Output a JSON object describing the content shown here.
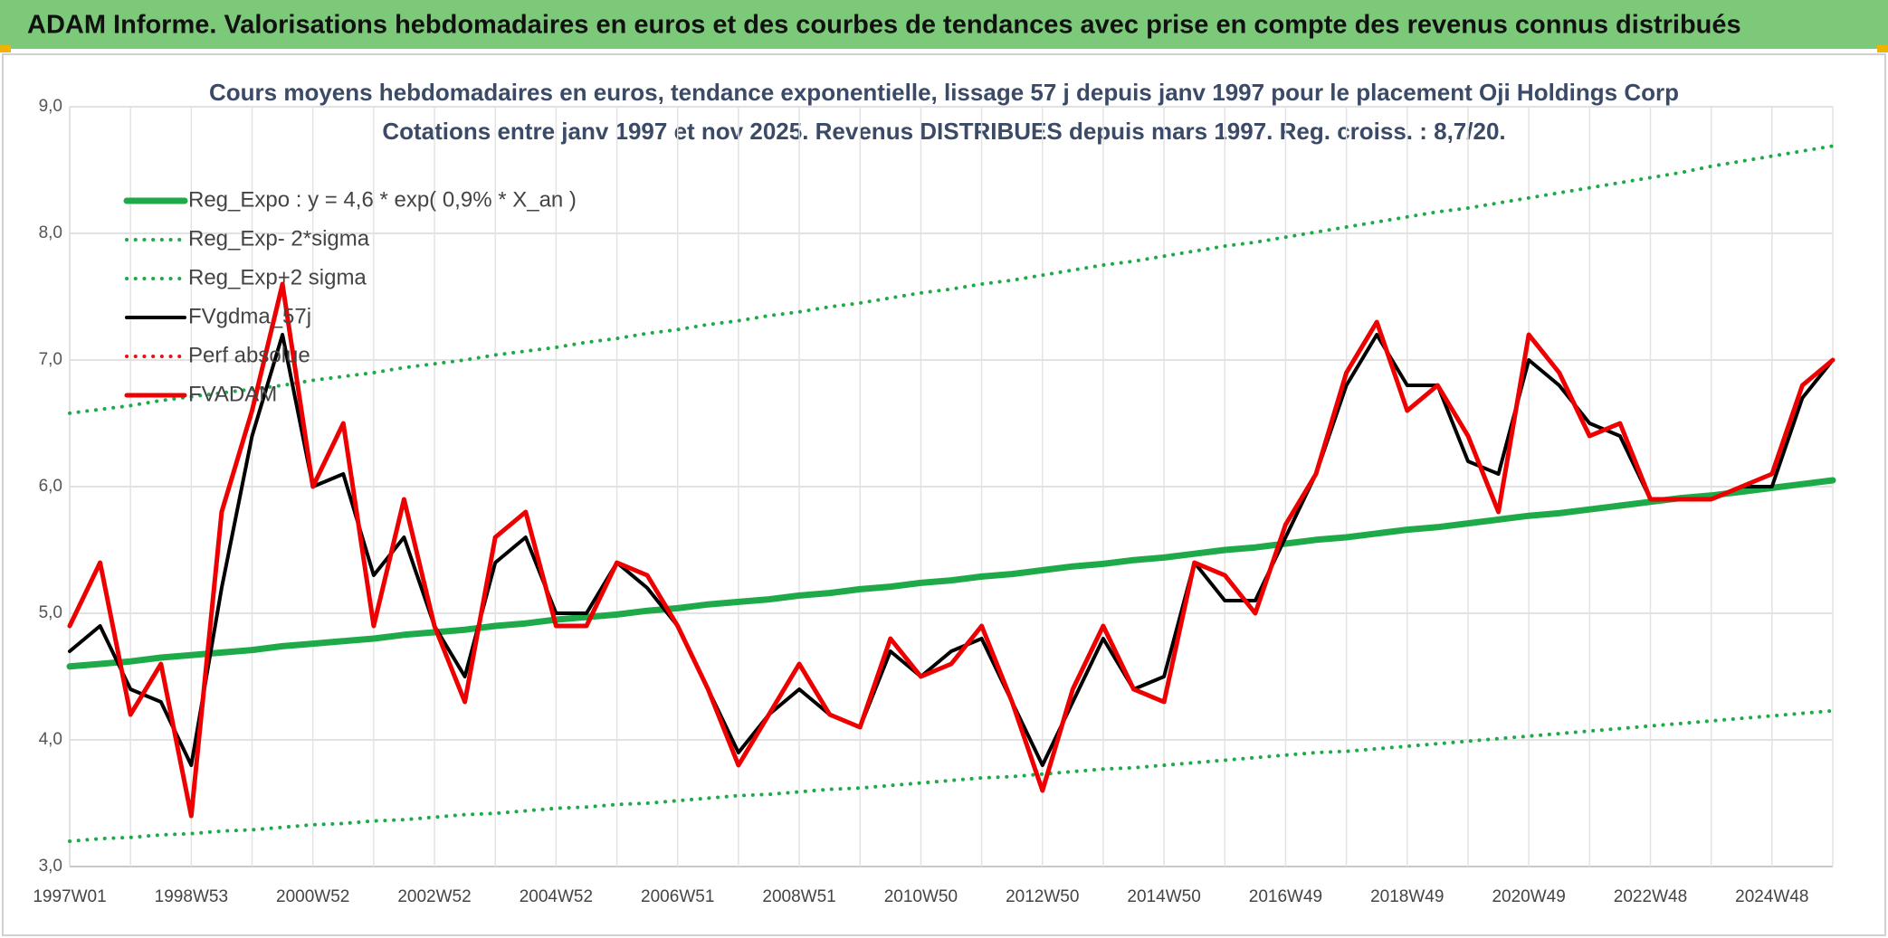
{
  "header_title": "ADAM Informe. Valorisations hebdomadaires en euros et des courbes de tendances avec prise en compte des revenus connus distribués",
  "chart_data": {
    "type": "line",
    "title": "Cours moyens hebdomadaires en euros, tendance exponentielle, lissage 57 j depuis janv 1997 pour le placement Oji Holdings Corp",
    "subtitle": "Cotations entre janv 1997 et nov 2025. Revenus DISTRIBUES depuis mars 1997. Reg. croiss. : 8,7/20.",
    "categories": [
      "1997W01",
      null,
      null,
      null,
      "1998W53",
      null,
      null,
      null,
      "2000W52",
      null,
      null,
      null,
      "2002W52",
      null,
      null,
      null,
      "2004W52",
      null,
      null,
      null,
      "2006W51",
      null,
      null,
      null,
      "2008W51",
      null,
      null,
      null,
      "2010W50",
      null,
      null,
      null,
      "2012W50",
      null,
      null,
      null,
      "2014W50",
      null,
      null,
      null,
      "2016W49",
      null,
      null,
      null,
      "2018W49",
      null,
      null,
      null,
      "2020W49",
      null,
      null,
      null,
      "2022W48",
      null,
      null,
      null,
      "2024W48",
      null,
      null
    ],
    "ylim": [
      3,
      9
    ],
    "yticks": [
      {
        "value": 3,
        "label": "3,0"
      },
      {
        "value": 4,
        "label": "4,0"
      },
      {
        "value": 5,
        "label": "5,0"
      },
      {
        "value": 6,
        "label": "6,0"
      },
      {
        "value": 7,
        "label": "7,0"
      },
      {
        "value": 8,
        "label": "8,0"
      },
      {
        "value": 9,
        "label": "9,0"
      }
    ],
    "grid": true,
    "legend": "upper left",
    "series": [
      {
        "name": "Reg_Expo : y = 4,6 * exp( 0,9% *  X_an )",
        "color": "#1faa4a",
        "style": "solid",
        "width": 7,
        "values": [
          4.58,
          4.6,
          4.62,
          4.65,
          4.67,
          4.69,
          4.71,
          4.74,
          4.76,
          4.78,
          4.8,
          4.83,
          4.85,
          4.87,
          4.9,
          4.92,
          4.95,
          4.97,
          4.99,
          5.02,
          5.04,
          5.07,
          5.09,
          5.11,
          5.14,
          5.16,
          5.19,
          5.21,
          5.24,
          5.26,
          5.29,
          5.31,
          5.34,
          5.37,
          5.39,
          5.42,
          5.44,
          5.47,
          5.5,
          5.52,
          5.55,
          5.58,
          5.6,
          5.63,
          5.66,
          5.68,
          5.71,
          5.74,
          5.77,
          5.79,
          5.82,
          5.85,
          5.88,
          5.91,
          5.93,
          5.96,
          5.99,
          6.02,
          6.05
        ]
      },
      {
        "name": "Reg_Exp- 2*sigma",
        "color": "#1faa4a",
        "style": "dotted",
        "width": 4,
        "values": [
          3.2,
          3.22,
          3.23,
          3.25,
          3.26,
          3.28,
          3.29,
          3.31,
          3.33,
          3.34,
          3.36,
          3.37,
          3.39,
          3.41,
          3.42,
          3.44,
          3.46,
          3.47,
          3.49,
          3.5,
          3.52,
          3.54,
          3.56,
          3.57,
          3.59,
          3.61,
          3.62,
          3.64,
          3.66,
          3.68,
          3.7,
          3.71,
          3.73,
          3.75,
          3.77,
          3.78,
          3.8,
          3.82,
          3.84,
          3.86,
          3.88,
          3.9,
          3.91,
          3.93,
          3.95,
          3.97,
          3.99,
          4.01,
          4.03,
          4.05,
          4.07,
          4.09,
          4.11,
          4.13,
          4.15,
          4.17,
          4.19,
          4.21,
          4.23
        ]
      },
      {
        "name": "Reg_Exp+2 sigma",
        "color": "#1faa4a",
        "style": "dotted",
        "width": 4,
        "values": [
          6.58,
          6.61,
          6.64,
          6.68,
          6.71,
          6.74,
          6.77,
          6.8,
          6.84,
          6.87,
          6.9,
          6.94,
          6.97,
          7.0,
          7.04,
          7.07,
          7.1,
          7.14,
          7.17,
          7.21,
          7.24,
          7.28,
          7.31,
          7.35,
          7.38,
          7.42,
          7.45,
          7.49,
          7.53,
          7.56,
          7.6,
          7.63,
          7.67,
          7.71,
          7.75,
          7.78,
          7.82,
          7.86,
          7.9,
          7.93,
          7.97,
          8.01,
          8.05,
          8.09,
          8.13,
          8.17,
          8.2,
          8.24,
          8.28,
          8.32,
          8.36,
          8.4,
          8.44,
          8.48,
          8.53,
          8.57,
          8.61,
          8.65,
          8.69
        ]
      },
      {
        "name": "FVgdma_57j",
        "color": "#000000",
        "style": "solid",
        "width": 4,
        "values": [
          4.7,
          4.9,
          4.4,
          4.3,
          3.8,
          5.2,
          6.4,
          7.2,
          6.0,
          6.1,
          5.3,
          5.6,
          4.9,
          4.5,
          5.4,
          5.6,
          5.0,
          5.0,
          5.4,
          5.2,
          4.9,
          4.4,
          3.9,
          4.2,
          4.4,
          4.2,
          4.1,
          4.7,
          4.5,
          4.7,
          4.8,
          4.3,
          3.8,
          4.3,
          4.8,
          4.4,
          4.5,
          5.4,
          5.1,
          5.1,
          5.6,
          6.1,
          6.8,
          7.2,
          6.8,
          6.8,
          6.2,
          6.1,
          7.0,
          6.8,
          6.5,
          6.4,
          5.9,
          5.9,
          5.9,
          6.0,
          6.0,
          6.7,
          7.0
        ]
      },
      {
        "name": "Perf absolue",
        "color": "#ee1111",
        "style": "dotted",
        "width": 4,
        "values": [
          null,
          null,
          null,
          null,
          null,
          null,
          null,
          null,
          null,
          null,
          null,
          null,
          null,
          null,
          null,
          null,
          null,
          null,
          null,
          null,
          null,
          null,
          null,
          null,
          null,
          null,
          null,
          null,
          null,
          null,
          null,
          null,
          null,
          null,
          null,
          null,
          null,
          null,
          null,
          null,
          null,
          null,
          null,
          null,
          null,
          null,
          null,
          null,
          null,
          null,
          null,
          null,
          null,
          null,
          null,
          null,
          null,
          null,
          null
        ]
      },
      {
        "name": "FVADAM",
        "color": "#ee0000",
        "style": "solid",
        "width": 5,
        "values": [
          4.9,
          5.4,
          4.2,
          4.6,
          3.4,
          5.8,
          6.6,
          7.6,
          6.0,
          6.5,
          4.9,
          5.9,
          4.9,
          4.3,
          5.6,
          5.8,
          4.9,
          4.9,
          5.4,
          5.3,
          4.9,
          4.4,
          3.8,
          4.2,
          4.6,
          4.2,
          4.1,
          4.8,
          4.5,
          4.6,
          4.9,
          4.3,
          3.6,
          4.4,
          4.9,
          4.4,
          4.3,
          5.4,
          5.3,
          5.0,
          5.7,
          6.1,
          6.9,
          7.3,
          6.6,
          6.8,
          6.4,
          5.8,
          7.2,
          6.9,
          6.4,
          6.5,
          5.9,
          5.9,
          5.9,
          6.0,
          6.1,
          6.8,
          7.0
        ]
      }
    ]
  }
}
